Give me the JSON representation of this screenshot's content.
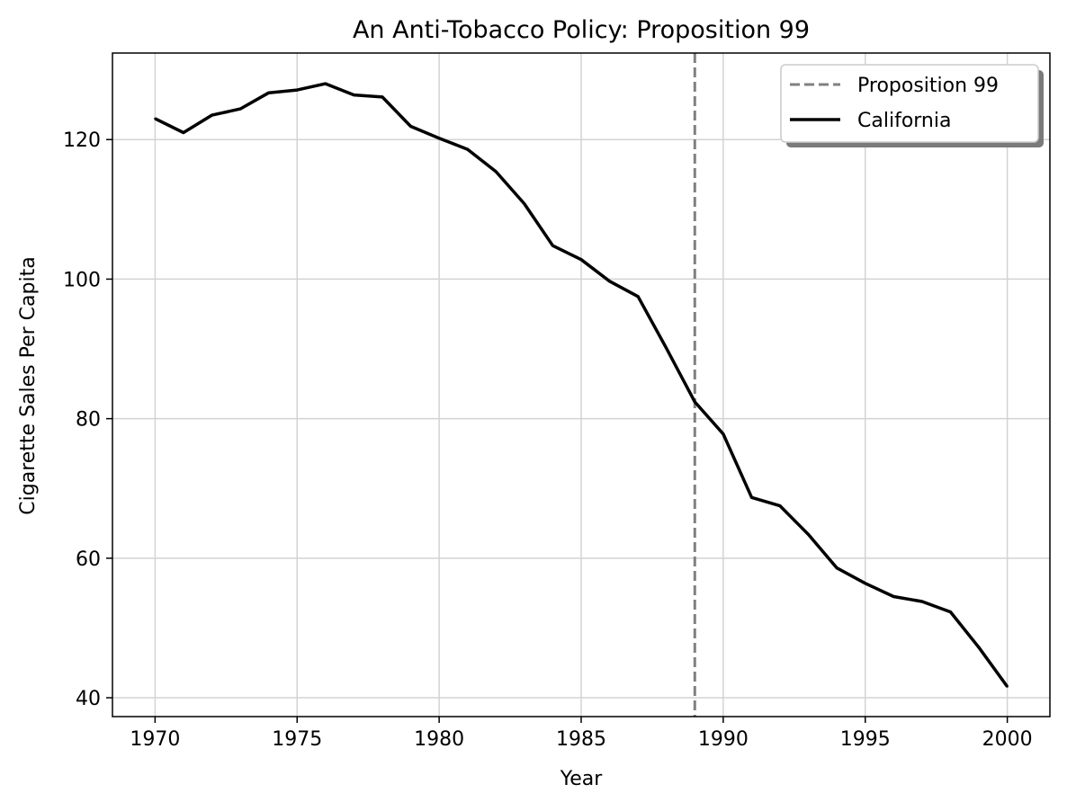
{
  "chart_data": {
    "type": "line",
    "title": "An Anti-Tobacco Policy: Proposition 99",
    "xlabel": "Year",
    "ylabel": "Cigarette Sales Per Capita",
    "xlim": [
      1968.5,
      2001.5
    ],
    "ylim": [
      37.3,
      132.4
    ],
    "xticks": [
      1970,
      1975,
      1980,
      1985,
      1990,
      1995,
      2000
    ],
    "yticks": [
      40,
      60,
      80,
      100,
      120
    ],
    "grid": true,
    "legend_position": "top-right",
    "series": [
      {
        "name": "California",
        "color": "#000000",
        "style": "solid",
        "x": [
          1970,
          1971,
          1972,
          1973,
          1974,
          1975,
          1976,
          1977,
          1978,
          1979,
          1980,
          1981,
          1982,
          1983,
          1984,
          1985,
          1986,
          1987,
          1988,
          1989,
          1990,
          1991,
          1992,
          1993,
          1994,
          1995,
          1996,
          1997,
          1998,
          1999,
          2000
        ],
        "values": [
          123.0,
          121.0,
          123.5,
          124.4,
          126.7,
          127.1,
          128.0,
          126.4,
          126.1,
          121.9,
          120.2,
          118.6,
          115.4,
          110.8,
          104.8,
          102.8,
          99.7,
          97.5,
          90.1,
          82.4,
          77.8,
          68.7,
          67.5,
          63.4,
          58.6,
          56.4,
          54.5,
          53.8,
          52.3,
          47.2,
          41.6
        ]
      }
    ],
    "annotations": [
      {
        "name": "Proposition 99",
        "type": "vline",
        "x": 1989,
        "color": "#808080",
        "style": "dashed"
      }
    ]
  }
}
